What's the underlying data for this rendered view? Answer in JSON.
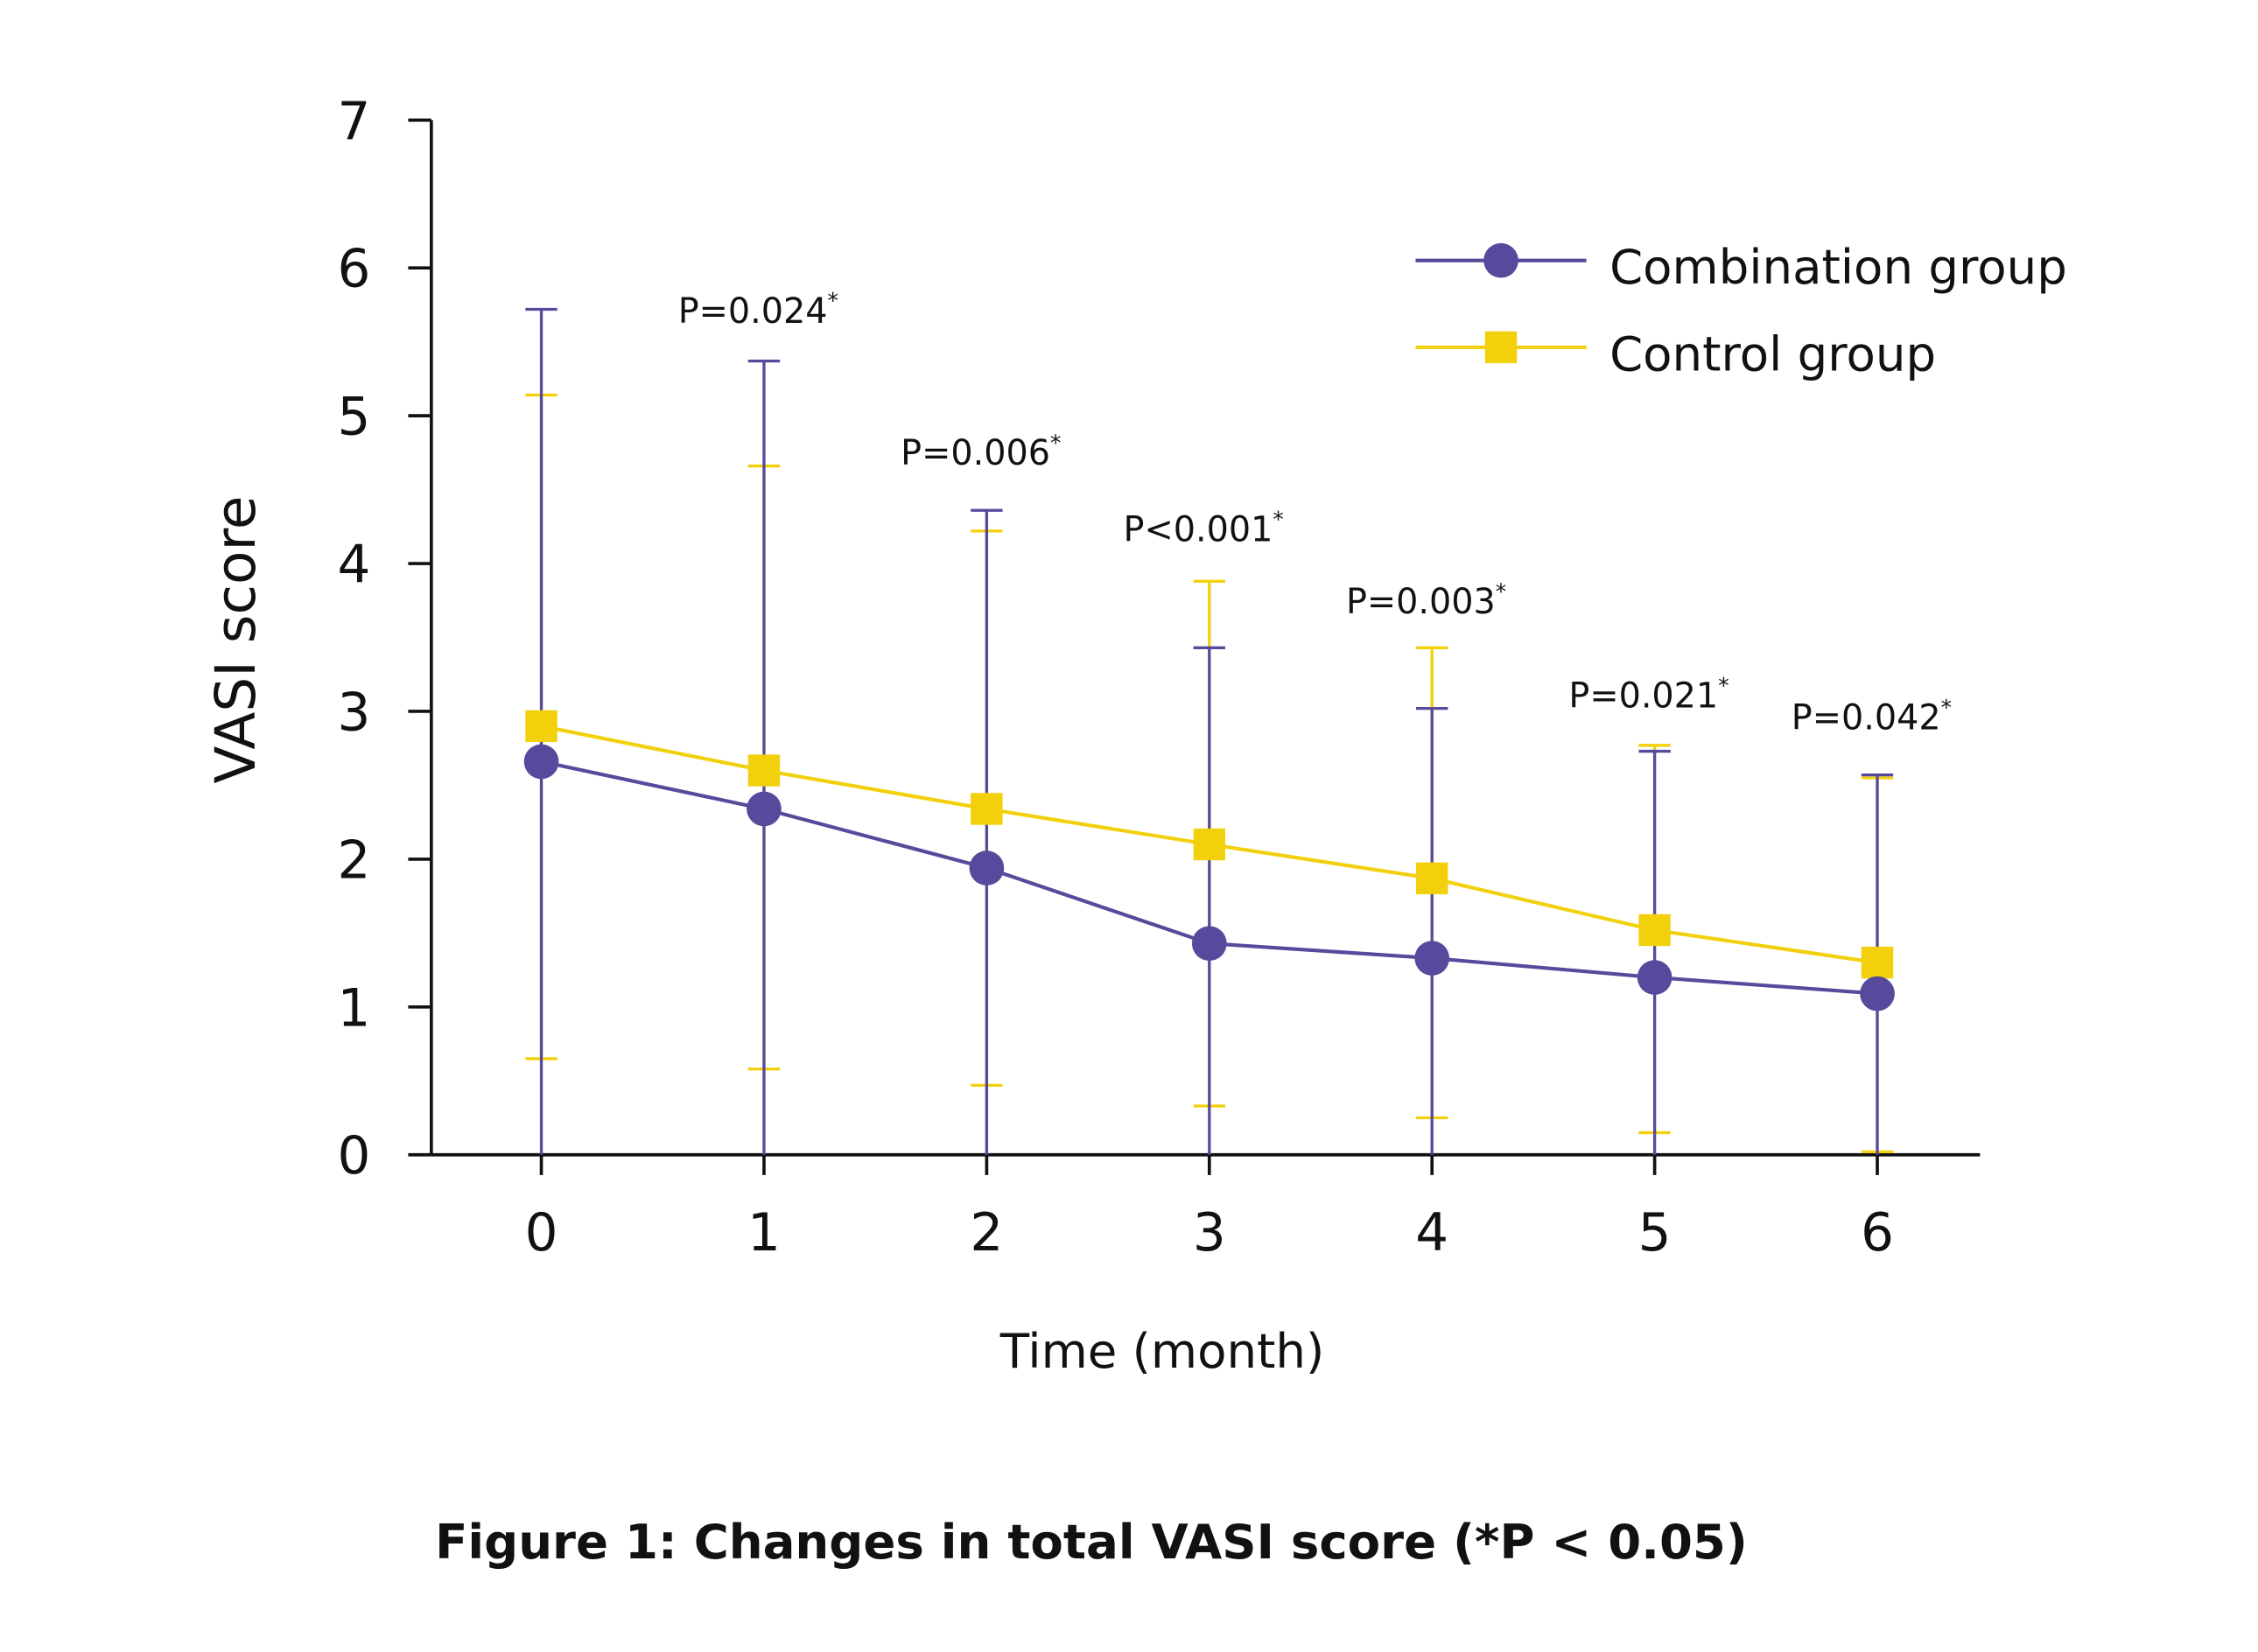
{
  "chart_data": {
    "type": "line",
    "title": "",
    "caption": "Figure 1: Changes in total VASI score (*P < 0.05)",
    "xlabel": "Time (month)",
    "ylabel": "VASI score",
    "x": [
      0,
      1,
      2,
      3,
      4,
      5,
      6
    ],
    "x_tick_labels": [
      "0",
      "1",
      "2",
      "3",
      "4",
      "5",
      "6"
    ],
    "ylim": [
      0,
      7
    ],
    "y_ticks": [
      0,
      1,
      2,
      3,
      4,
      5,
      6,
      7
    ],
    "y_tick_labels": [
      "0",
      "1",
      "2",
      "3",
      "4",
      "5",
      "6",
      "7"
    ],
    "grid": false,
    "legend_position": "top-right",
    "series": [
      {
        "name": "Combination group",
        "color": "#574a9c",
        "marker": "circle",
        "values": [
          2.66,
          2.34,
          1.94,
          1.43,
          1.33,
          1.2,
          1.09
        ],
        "error_upper": [
          5.72,
          5.37,
          4.36,
          3.43,
          3.02,
          2.73,
          2.57
        ],
        "error_lower": [
          0,
          0,
          0,
          0,
          0,
          0,
          0
        ]
      },
      {
        "name": "Control group",
        "color": "#f2d00c",
        "marker": "square",
        "values": [
          2.9,
          2.6,
          2.34,
          2.1,
          1.87,
          1.52,
          1.3
        ],
        "error_upper": [
          5.14,
          4.66,
          4.22,
          3.88,
          3.43,
          2.77,
          2.55
        ],
        "error_lower": [
          0.65,
          0.58,
          0.47,
          0.33,
          0.25,
          0.15,
          0.02
        ]
      }
    ],
    "annotations": [
      {
        "x": 1,
        "text": "P=0.024",
        "mark": "*"
      },
      {
        "x": 2,
        "text": "P=0.006",
        "mark": "*"
      },
      {
        "x": 3,
        "text": "P<0.001",
        "mark": "*"
      },
      {
        "x": 4,
        "text": "P=0.003",
        "mark": "*"
      },
      {
        "x": 5,
        "text": "P=0.021",
        "mark": "*"
      },
      {
        "x": 6,
        "text": "P=0.042",
        "mark": "*"
      }
    ]
  }
}
